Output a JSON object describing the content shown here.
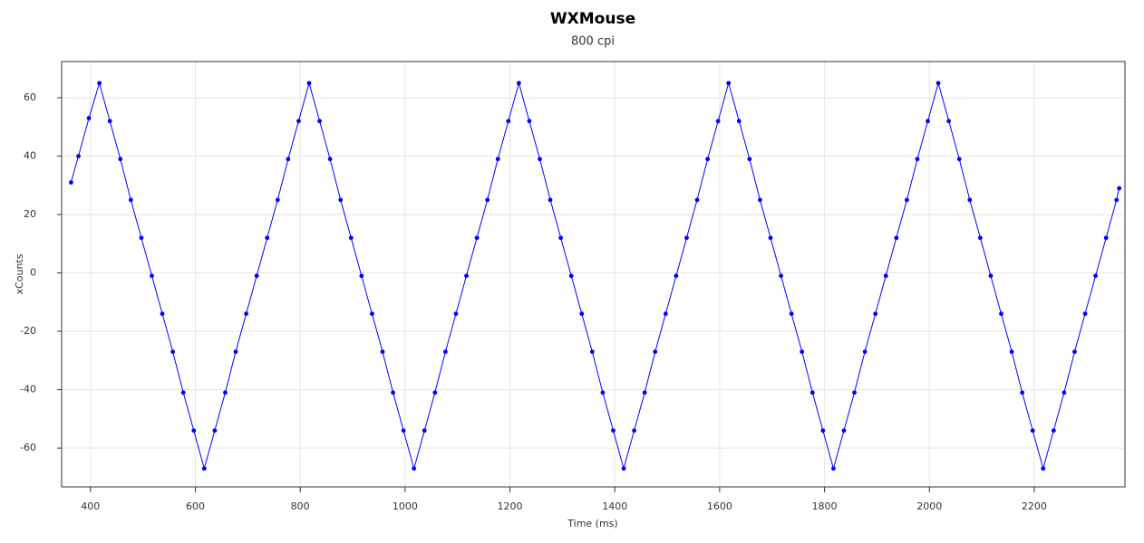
{
  "chart_data": {
    "type": "line",
    "title": "WXMouse",
    "subtitle": "800 cpi",
    "x_label": "Time (ms)",
    "y_label": "xCounts",
    "x": [
      363,
      377,
      397,
      417,
      437,
      457,
      477,
      497,
      517,
      537,
      557,
      577,
      597,
      617,
      637,
      657,
      677,
      697,
      717,
      737,
      757,
      777,
      797,
      817,
      837,
      857,
      877,
      897,
      917,
      937,
      957,
      977,
      997,
      1017,
      1037,
      1057,
      1077,
      1097,
      1117,
      1137,
      1157,
      1177,
      1197,
      1217,
      1237,
      1257,
      1277,
      1297,
      1317,
      1337,
      1357,
      1377,
      1397,
      1417,
      1437,
      1457,
      1477,
      1497,
      1517,
      1537,
      1557,
      1577,
      1597,
      1617,
      1637,
      1657,
      1677,
      1697,
      1717,
      1737,
      1757,
      1777,
      1797,
      1817,
      1837,
      1857,
      1877,
      1897,
      1917,
      1937,
      1957,
      1977,
      1997,
      2017,
      2037,
      2057,
      2077,
      2097,
      2117,
      2137,
      2157,
      2177,
      2197,
      2217,
      2237,
      2257,
      2277,
      2297,
      2317,
      2337,
      2357,
      2362
    ],
    "series": [
      {
        "name": "xCounts",
        "color": "#0000ff",
        "values": [
          31,
          40,
          53,
          65,
          52,
          39,
          25,
          12,
          -1,
          -14,
          -27,
          -41,
          -54,
          -67,
          -54,
          -41,
          -27,
          -14,
          -1,
          12,
          25,
          39,
          52,
          65,
          52,
          39,
          25,
          12,
          -1,
          -14,
          -27,
          -41,
          -54,
          -67,
          -54,
          -41,
          -27,
          -14,
          -1,
          12,
          25,
          39,
          52,
          65,
          52,
          39,
          25,
          12,
          -1,
          -14,
          -27,
          -41,
          -54,
          -67,
          -54,
          -41,
          -27,
          -14,
          -1,
          12,
          25,
          39,
          52,
          65,
          52,
          39,
          25,
          12,
          -1,
          -14,
          -27,
          -41,
          -54,
          -67,
          -54,
          -41,
          -27,
          -14,
          -1,
          12,
          25,
          39,
          52,
          65,
          52,
          39,
          25,
          12,
          -1,
          -14,
          -27,
          -41,
          -54,
          -67,
          -54,
          -41,
          -27,
          -14,
          -1,
          12,
          25,
          29
        ]
      }
    ],
    "xlim": [
      345,
      2373
    ],
    "ylim": [
      -73.3,
      72.4
    ],
    "xticks": [
      400,
      600,
      800,
      1000,
      1200,
      1400,
      1600,
      1800,
      2000,
      2200
    ],
    "yticks": [
      -60,
      -40,
      -20,
      0,
      20,
      40,
      60
    ],
    "grid": true
  }
}
